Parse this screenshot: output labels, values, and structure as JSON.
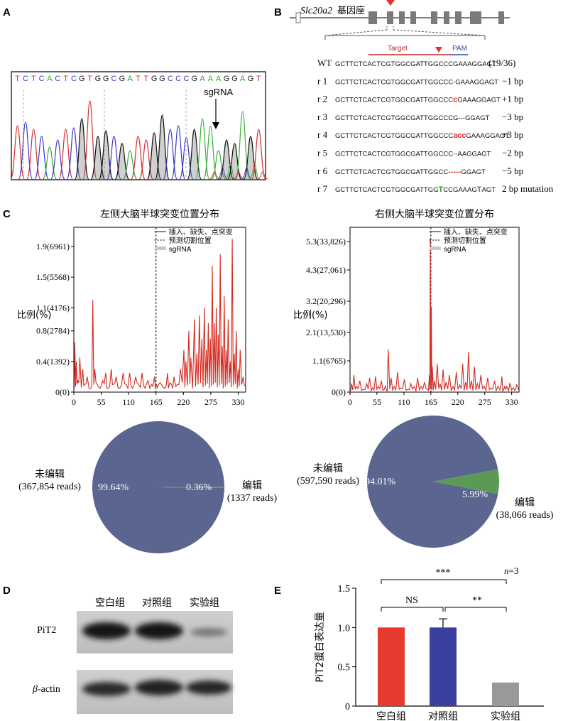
{
  "panels": {
    "A": "A",
    "B": "B",
    "C": "C",
    "D": "D",
    "E": "E"
  },
  "panelA": {
    "bases": [
      "T",
      "C",
      "T",
      "C",
      "A",
      "C",
      "T",
      "C",
      "G",
      "T",
      "G",
      "G",
      "C",
      "G",
      "A",
      "T",
      "T",
      "G",
      "G",
      "C",
      "C",
      "C",
      "G",
      "A",
      "A",
      "A",
      "G",
      "G",
      "A",
      "G",
      "T"
    ],
    "sgrna": "sgRNA"
  },
  "panelB": {
    "gene": "Slc20a2",
    "locus": "基因座",
    "target": "Target",
    "pam": "PAM",
    "rows": [
      {
        "name": "WT",
        "segments": [
          [
            "GCTTCTCACTCGTGGCGATTGGCCCGAAAGGAGT",
            "#111"
          ]
        ],
        "note": "(19/36)"
      },
      {
        "name": "r 1",
        "segments": [
          [
            "GCTTCTCACTCGTGGCGATTGGCCC",
            "#111"
          ],
          [
            "-",
            "#111"
          ],
          [
            "GAAAGGAGT",
            "#111"
          ]
        ],
        "note": "−1 bp"
      },
      {
        "name": "r 2",
        "segments": [
          [
            "GCTTCTCACTCGTGGCGATTGGCCC",
            "#111"
          ],
          [
            "c",
            "#e03030"
          ],
          [
            "GAAAGGAGT",
            "#111"
          ]
        ],
        "note": "+1 bp"
      },
      {
        "name": "r 3",
        "segments": [
          [
            "GCTTCTCACTCGTGGCGATTGGCCCG",
            "#111"
          ],
          [
            "---",
            "#111"
          ],
          [
            "GGAGT",
            "#111"
          ]
        ],
        "note": "−3 bp"
      },
      {
        "name": "r 4",
        "segments": [
          [
            "GCTTCTCACTCGTGGCGATTGGCCC",
            "#111"
          ],
          [
            "acc",
            "#e03030"
          ],
          [
            "GAAAGGAGT",
            "#111"
          ]
        ],
        "note": "+3 bp"
      },
      {
        "name": "r 5",
        "segments": [
          [
            "GCTTCTCACTCGTGGCGATTGGCCC",
            "#111"
          ],
          [
            "--",
            "#111"
          ],
          [
            "AAGGAGT",
            "#111"
          ]
        ],
        "note": "−2 bp"
      },
      {
        "name": "r 6",
        "segments": [
          [
            "GCTTCTCACTCGTGGCGATTGGCC",
            "#111"
          ],
          [
            "-----",
            "#e03030"
          ],
          [
            "GGAGT",
            "#111"
          ]
        ],
        "note": "−5 bp"
      },
      {
        "name": "r 7",
        "segments": [
          [
            "GCTTCTCACTCGTGGCGATTGG",
            "#111"
          ],
          [
            "T",
            "#3a9a3a"
          ],
          [
            "CCGAAAG",
            "#111"
          ],
          [
            "T",
            "#3a9a3a"
          ],
          [
            "AGT",
            "#111"
          ]
        ],
        "note": "2 bp mutation"
      }
    ]
  },
  "chart_data": [
    {
      "type": "line",
      "title": "左侧大脑半球突变位置分布",
      "ylabel": "比例(%)",
      "yticks": [
        "0(0)",
        "0.4(1392)",
        "0.8(2784)",
        "1.1(4176)",
        "1.5(5568)",
        "1.9(6961)"
      ],
      "ytick_values": [
        0,
        0.4,
        0.8,
        1.1,
        1.5,
        1.9
      ],
      "ylim": [
        0,
        2.15
      ],
      "xticks": [
        0,
        55,
        110,
        165,
        220,
        275,
        330
      ],
      "xlim": [
        0,
        345
      ],
      "cut_position": 165,
      "legend": [
        "插入、缺失、点突变",
        "预测切割位置",
        "sgRNA"
      ],
      "legend_position": "top-right",
      "peaks": [
        [
          2,
          0.65
        ],
        [
          5,
          0.4
        ],
        [
          8,
          0.15
        ],
        [
          12,
          0.45
        ],
        [
          18,
          0.3
        ],
        [
          22,
          0.1
        ],
        [
          27,
          0.2
        ],
        [
          34,
          0.05
        ],
        [
          38,
          1.2
        ],
        [
          42,
          0.3
        ],
        [
          47,
          0.1
        ],
        [
          53,
          0.05
        ],
        [
          58,
          0.15
        ],
        [
          64,
          0.25
        ],
        [
          69,
          0.05
        ],
        [
          75,
          0.3
        ],
        [
          80,
          0.1
        ],
        [
          85,
          0.2
        ],
        [
          92,
          0.05
        ],
        [
          99,
          0.25
        ],
        [
          105,
          0.1
        ],
        [
          112,
          0.25
        ],
        [
          118,
          0.05
        ],
        [
          124,
          0.2
        ],
        [
          130,
          0.1
        ],
        [
          137,
          0.25
        ],
        [
          143,
          0.05
        ],
        [
          149,
          0.15
        ],
        [
          156,
          0.1
        ],
        [
          162,
          0.2
        ],
        [
          170,
          0.1
        ],
        [
          176,
          0.1
        ],
        [
          183,
          0.05
        ],
        [
          188,
          0.25
        ],
        [
          196,
          0.1
        ],
        [
          201,
          0.2
        ],
        [
          208,
          0.1
        ],
        [
          214,
          0.3
        ],
        [
          221,
          0.55
        ],
        [
          225,
          0.4
        ],
        [
          231,
          0.8
        ],
        [
          235,
          0.45
        ],
        [
          242,
          0.95
        ],
        [
          247,
          0.5
        ],
        [
          252,
          1.0
        ],
        [
          257,
          0.7
        ],
        [
          262,
          1.1
        ],
        [
          266,
          0.55
        ],
        [
          270,
          0.9
        ],
        [
          274,
          0.7
        ],
        [
          278,
          1.65
        ],
        [
          282,
          0.9
        ],
        [
          286,
          1.1
        ],
        [
          290,
          0.75
        ],
        [
          294,
          1.8
        ],
        [
          298,
          0.6
        ],
        [
          302,
          1.25
        ],
        [
          306,
          0.55
        ],
        [
          310,
          0.95
        ],
        [
          314,
          0.4
        ],
        [
          318,
          2.0
        ],
        [
          322,
          0.5
        ],
        [
          326,
          0.8
        ],
        [
          330,
          0.3
        ],
        [
          334,
          0.55
        ],
        [
          340,
          0.2
        ]
      ]
    },
    {
      "type": "line",
      "title": "右侧大脑半球突变位置分布",
      "ylabel": "比例(%)",
      "yticks": [
        "0(0)",
        "1.1(6765)",
        "2.1(13,530)",
        "3.2(20,296)",
        "4.3(27,061)",
        "5.3(33,826)"
      ],
      "ytick_values": [
        0,
        1.1,
        2.1,
        3.2,
        4.3,
        5.3
      ],
      "ylim": [
        0,
        5.8
      ],
      "xticks": [
        0,
        55,
        110,
        165,
        220,
        275,
        330
      ],
      "xlim": [
        0,
        345
      ],
      "cut_position": 165,
      "legend": [
        "插入、缺失、点突变",
        "预测切割位置",
        "sgRNA"
      ],
      "legend_position": "top-right",
      "peaks": [
        [
          3,
          0.3
        ],
        [
          8,
          0.6
        ],
        [
          13,
          0.2
        ],
        [
          20,
          0.4
        ],
        [
          27,
          0.1
        ],
        [
          34,
          0.3
        ],
        [
          40,
          0.5
        ],
        [
          46,
          0.15
        ],
        [
          52,
          0.55
        ],
        [
          58,
          0.2
        ],
        [
          64,
          0.4
        ],
        [
          70,
          0.1
        ],
        [
          78,
          1.5
        ],
        [
          84,
          0.5
        ],
        [
          90,
          0.2
        ],
        [
          97,
          0.7
        ],
        [
          104,
          0.15
        ],
        [
          111,
          0.45
        ],
        [
          118,
          0.1
        ],
        [
          124,
          0.3
        ],
        [
          131,
          0.2
        ],
        [
          138,
          0.5
        ],
        [
          145,
          0.2
        ],
        [
          152,
          0.35
        ],
        [
          158,
          0.1
        ],
        [
          162,
          0.6
        ],
        [
          164,
          5.4
        ],
        [
          166,
          3.0
        ],
        [
          168,
          0.9
        ],
        [
          172,
          0.4
        ],
        [
          178,
          1.0
        ],
        [
          184,
          0.3
        ],
        [
          190,
          0.8
        ],
        [
          196,
          0.35
        ],
        [
          203,
          0.6
        ],
        [
          210,
          0.2
        ],
        [
          217,
          0.7
        ],
        [
          224,
          0.25
        ],
        [
          230,
          1.0
        ],
        [
          236,
          0.35
        ],
        [
          242,
          1.4
        ],
        [
          248,
          0.4
        ],
        [
          254,
          0.9
        ],
        [
          260,
          0.3
        ],
        [
          267,
          0.6
        ],
        [
          274,
          0.2
        ],
        [
          281,
          0.5
        ],
        [
          288,
          0.15
        ],
        [
          295,
          0.4
        ],
        [
          302,
          0.2
        ],
        [
          310,
          0.55
        ],
        [
          318,
          0.1
        ],
        [
          326,
          0.3
        ],
        [
          334,
          0.15
        ],
        [
          342,
          0.2
        ]
      ]
    },
    {
      "type": "pie",
      "labels": [
        "未编辑",
        "编辑"
      ],
      "reads": [
        "(367,854 reads)",
        "(1337 reads)"
      ],
      "values": [
        99.64,
        0.36
      ],
      "value_labels": [
        "99.64%",
        "0.36%"
      ],
      "colors": [
        "#5a6590",
        "#5a9a55"
      ]
    },
    {
      "type": "pie",
      "labels": [
        "未编辑",
        "编辑"
      ],
      "reads": [
        "(597,590 reads)",
        "(38,066 reads)"
      ],
      "values": [
        94.01,
        5.99
      ],
      "value_labels": [
        "94.01%",
        "5.99%"
      ],
      "colors": [
        "#5a6590",
        "#5a9a55"
      ]
    },
    {
      "type": "bar",
      "categories": [
        "空白组",
        "对照组",
        "实验组"
      ],
      "values": [
        1.0,
        1.0,
        0.3
      ],
      "errors": [
        0,
        0.11,
        0
      ],
      "colors": [
        "#e63a2e",
        "#3b3fa0",
        "#999999"
      ],
      "ylabel": "PiT2蛋白表达量",
      "yticks": [
        "0",
        "0.5",
        "1.0",
        "1.5"
      ],
      "ytick_values": [
        0,
        0.5,
        1.0,
        1.5
      ],
      "ylim": [
        0,
        1.5
      ],
      "n_label": "n",
      "n_value": "=3",
      "significance": [
        "***",
        "NS",
        "**"
      ]
    }
  ],
  "panelD": {
    "groups": [
      "空白组",
      "对照组",
      "实验组"
    ],
    "rows": [
      "PiT2",
      "β-actin"
    ],
    "beta_symbol": "β",
    "actin_suffix": "-actin"
  }
}
